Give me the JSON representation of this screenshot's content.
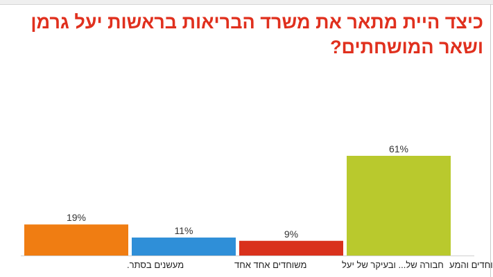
{
  "title": "כיצד היית מתאר את משרד הבריאות בראשות יעל גרמן ושאר המושחתים?",
  "chart_data": {
    "type": "bar",
    "title": "כיצד היית מתאר את משרד הבריאות בראשות יעל גרמן ושאר המושחתים?",
    "categories": [
      "מעשנים בסתר.",
      "משוחדים אחד אחד",
      "חבורה של... ובעיקר של יעל",
      "בדוקקקקקקקקק שכל השוחדים והמע"
    ],
    "values": [
      19,
      11,
      9,
      61
    ],
    "value_labels": [
      "19%",
      "11%",
      "9%",
      "61%"
    ],
    "colors": [
      "#f07d12",
      "#2f8fd8",
      "#d9311c",
      "#b9c92d"
    ],
    "unit": "%",
    "ylim": [
      0,
      61
    ],
    "grid": false,
    "legend": "none"
  }
}
